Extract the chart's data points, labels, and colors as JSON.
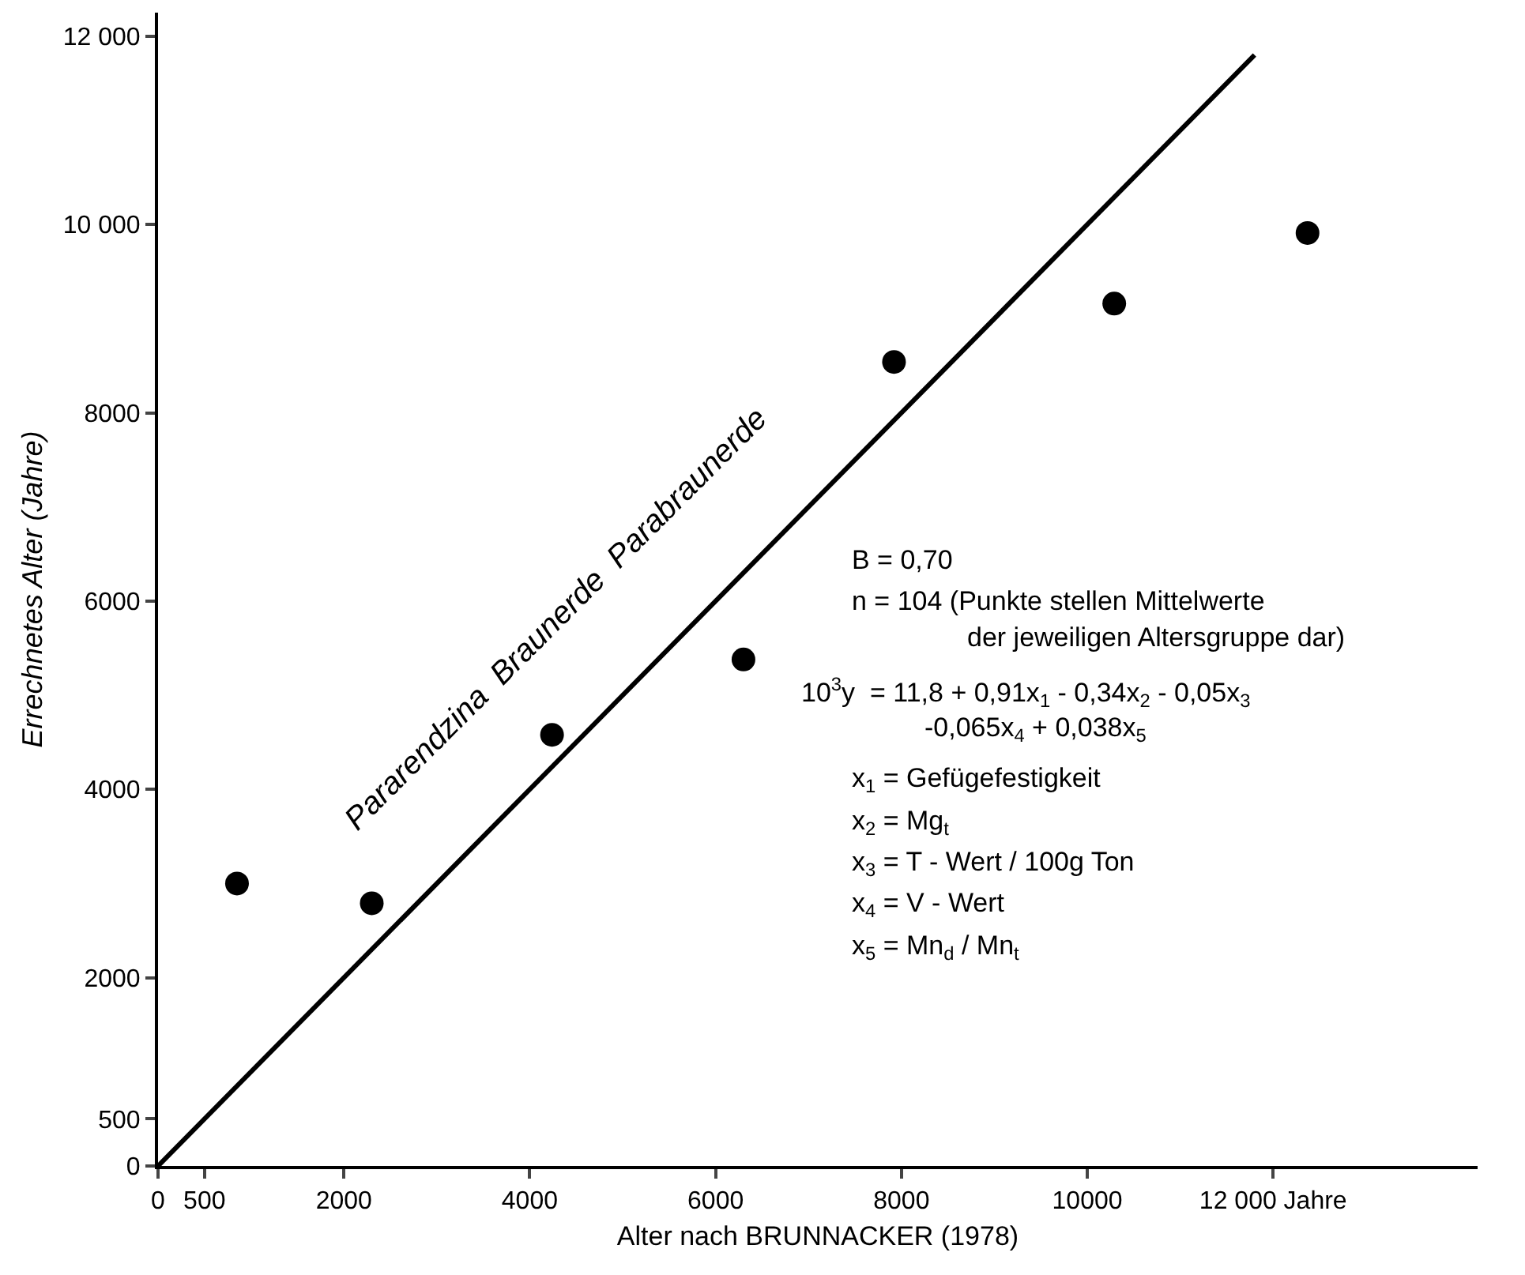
{
  "chart_data": {
    "type": "scatter",
    "xlabel": "Alter nach BRUNNACKER (1978)",
    "ylabel": "Errechnetes Alter (Jahre)",
    "xlim": [
      0,
      14200
    ],
    "ylim": [
      0,
      12250
    ],
    "xticks": [
      0,
      500,
      2000,
      4000,
      6000,
      8000,
      10000,
      {
        "value": 12000,
        "label": "12 000 Jahre"
      }
    ],
    "yticks": [
      0,
      500,
      2000,
      4000,
      6000,
      8000,
      {
        "value": 10000,
        "label": "10 000"
      },
      {
        "value": 12000,
        "label": "12 000"
      }
    ],
    "marker": "circle",
    "series": [
      {
        "color": "#000000",
        "x": [
          850,
          2300,
          4240,
          6300,
          7920,
          10290,
          12370
        ],
        "values": [
          3000,
          2790,
          4580,
          5380,
          8540,
          9160,
          9910
        ]
      },
      {
        "type": "line",
        "color": "#000000",
        "line_style": "solid",
        "marker": "none",
        "x": [
          0,
          11800
        ],
        "values": [
          0,
          11800
        ]
      }
    ],
    "annotations": [
      "Pararendzina  Braunerde  Parabraunerde",
      "B = 0,70",
      "n = 104 (Punkte stellen Mittelwerte",
      "der jeweiligen Altersgruppe dar)",
      "10$^{3}$y  = 11,8 + 0,91x$_{1}$ - 0,34x$_{2}$ - 0,05x$_{3}$",
      "-0,065x$_{4}$ + 0,038x$_{5}$",
      "x$_{1}$ = Gefügefestigkeit",
      "x$_{2}$ = Mg$_{t}$",
      "x$_{3}$ = T - Wert / 100g Ton",
      "x$_{4}$ = V - Wert",
      "x$_{5}$ = Mn$_{d}$ / Mn$_{t}$"
    ]
  }
}
